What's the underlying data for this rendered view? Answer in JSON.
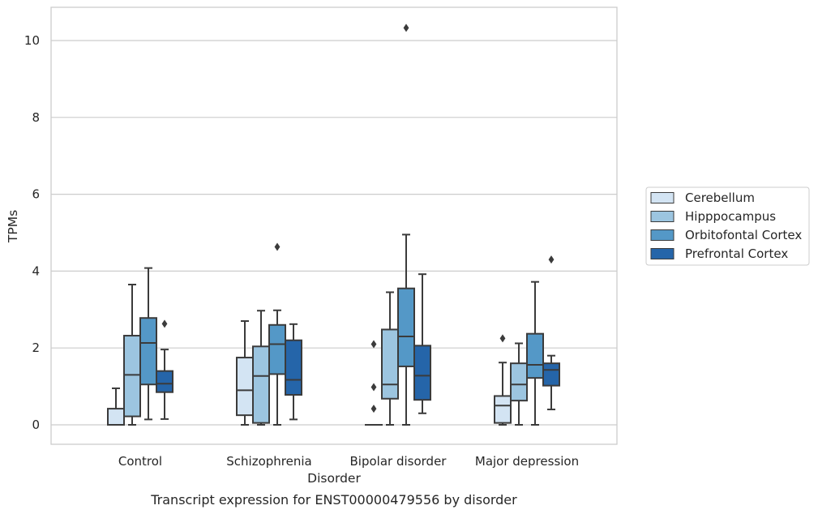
{
  "caption": "Transcript expression for ENST00000479556 by disorder",
  "chart_data": {
    "type": "boxplot",
    "xlabel": "Disorder",
    "ylabel": "TPMs",
    "ylim": [
      -0.5,
      10.85
    ],
    "yticks": [
      0,
      2,
      4,
      6,
      8,
      10
    ],
    "grid": "horizontal",
    "legend_position": "right",
    "categories": [
      "Control",
      "Schizophrenia",
      "Bipolar disorder",
      "Major depression"
    ],
    "series": [
      {
        "name": "Cerebellum",
        "color": "#d3e4f3",
        "boxes": [
          {
            "q1": 0.0,
            "median": 0.0,
            "q3": 0.42,
            "whisker_low": 0.0,
            "whisker_high": 0.95,
            "outliers": []
          },
          {
            "q1": 0.25,
            "median": 0.9,
            "q3": 1.75,
            "whisker_low": 0.0,
            "whisker_high": 2.7,
            "outliers": []
          },
          {
            "q1": 0.0,
            "median": 0.0,
            "q3": 0.0,
            "whisker_low": 0.0,
            "whisker_high": 0.0,
            "outliers": [
              2.1,
              0.98,
              0.42
            ]
          },
          {
            "q1": 0.05,
            "median": 0.5,
            "q3": 0.75,
            "whisker_low": 0.0,
            "whisker_high": 1.62,
            "outliers": [
              2.25
            ]
          }
        ]
      },
      {
        "name": "Hipppocampus",
        "color": "#9cc5e0",
        "boxes": [
          {
            "q1": 0.22,
            "median": 1.3,
            "q3": 2.32,
            "whisker_low": 0.0,
            "whisker_high": 3.65,
            "outliers": []
          },
          {
            "q1": 0.05,
            "median": 1.27,
            "q3": 2.04,
            "whisker_low": 0.0,
            "whisker_high": 2.97,
            "outliers": []
          },
          {
            "q1": 0.68,
            "median": 1.05,
            "q3": 2.48,
            "whisker_low": 0.0,
            "whisker_high": 3.45,
            "outliers": []
          },
          {
            "q1": 0.63,
            "median": 1.05,
            "q3": 1.6,
            "whisker_low": 0.0,
            "whisker_high": 2.12,
            "outliers": []
          }
        ]
      },
      {
        "name": "Orbitofontal Cortex",
        "color": "#5498c7",
        "boxes": [
          {
            "q1": 1.05,
            "median": 2.13,
            "q3": 2.78,
            "whisker_low": 0.14,
            "whisker_high": 4.08,
            "outliers": []
          },
          {
            "q1": 1.32,
            "median": 2.1,
            "q3": 2.6,
            "whisker_low": 0.0,
            "whisker_high": 2.98,
            "outliers": [
              4.63
            ]
          },
          {
            "q1": 1.52,
            "median": 2.3,
            "q3": 3.55,
            "whisker_low": 0.0,
            "whisker_high": 4.95,
            "outliers": [
              10.33
            ]
          },
          {
            "q1": 1.22,
            "median": 1.56,
            "q3": 2.37,
            "whisker_low": 0.0,
            "whisker_high": 3.72,
            "outliers": []
          }
        ]
      },
      {
        "name": "Prefrontal Cortex",
        "color": "#2565a9",
        "boxes": [
          {
            "q1": 0.85,
            "median": 1.07,
            "q3": 1.4,
            "whisker_low": 0.15,
            "whisker_high": 1.96,
            "outliers": [
              2.63
            ]
          },
          {
            "q1": 0.78,
            "median": 1.17,
            "q3": 2.2,
            "whisker_low": 0.14,
            "whisker_high": 2.62,
            "outliers": []
          },
          {
            "q1": 0.65,
            "median": 1.28,
            "q3": 2.06,
            "whisker_low": 0.3,
            "whisker_high": 3.92,
            "outliers": []
          },
          {
            "q1": 1.02,
            "median": 1.43,
            "q3": 1.6,
            "whisker_low": 0.4,
            "whisker_high": 1.8,
            "outliers": [
              4.3
            ]
          }
        ]
      }
    ]
  }
}
